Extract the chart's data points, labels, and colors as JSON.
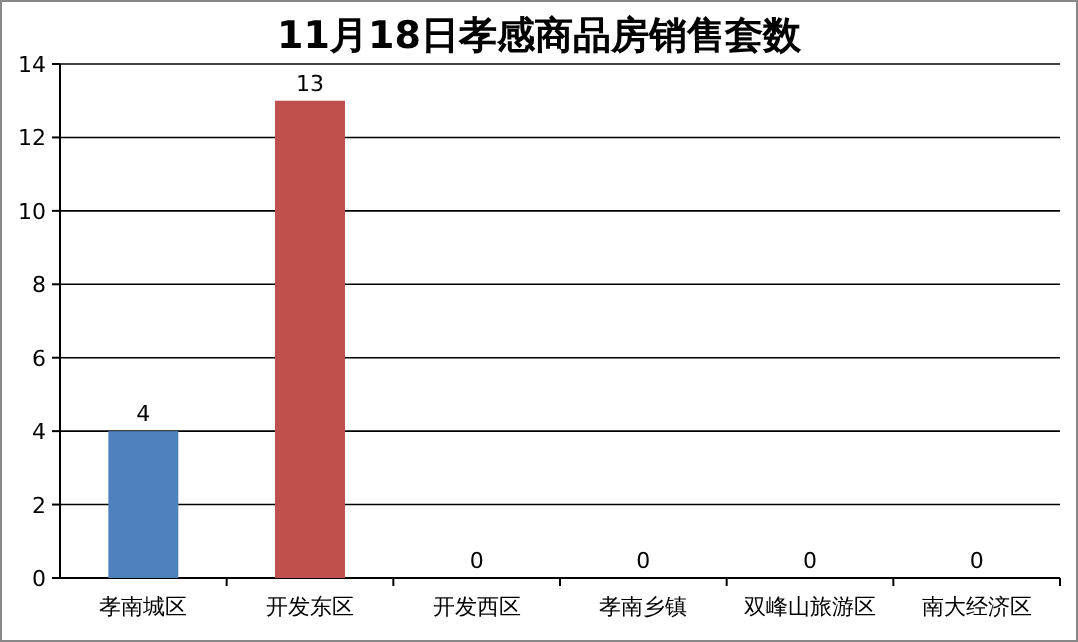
{
  "chart_data": {
    "type": "bar",
    "title": "11月18日孝感商品房销售套数",
    "categories": [
      "孝南城区",
      "开发东区",
      "开发西区",
      "孝南乡镇",
      "双峰山旅游区",
      "南大经济区"
    ],
    "values": [
      4,
      13,
      0,
      0,
      0,
      0
    ],
    "colors": [
      "#4f81bd",
      "#c0504d",
      "#9bbb59",
      "#8064a2",
      "#4bacc6",
      "#f79646"
    ],
    "ylim": [
      0,
      14
    ],
    "yticks": [
      0,
      2,
      4,
      6,
      8,
      10,
      12,
      14
    ],
    "grid": "y",
    "data_labels": true
  }
}
